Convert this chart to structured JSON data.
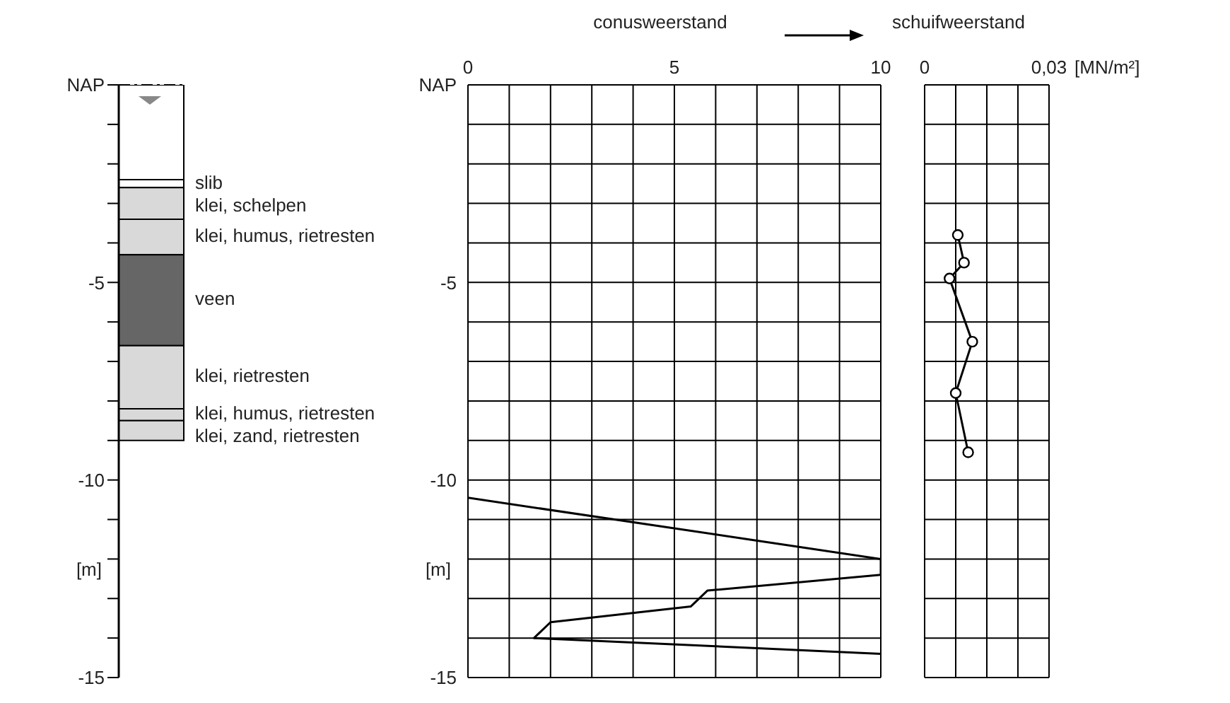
{
  "chart_data": [
    {
      "type": "bar",
      "stacked": true,
      "categories": [
        null
      ],
      "series": [
        {
          "color": "#ffffff",
          "values": [
            -2.4
          ]
        },
        {
          "name": "slib",
          "color": "#ffffff",
          "values": [
            -0.2
          ]
        },
        {
          "name": "klei, schelpen",
          "color": "#d9d9d9",
          "values": [
            -0.8
          ]
        },
        {
          "name": "klei, humus, rietresten",
          "color": "#d9d9d9",
          "values": [
            -0.9
          ]
        },
        {
          "name": "veen",
          "color": "#666666",
          "values": [
            -2.3
          ]
        },
        {
          "name": "klei, rietresten",
          "color": "#d9d9d9",
          "values": [
            -1.6
          ]
        },
        {
          "name": "klei, humus, rietresten",
          "color": "#d9d9d9",
          "values": [
            -0.3
          ]
        },
        {
          "name": "klei, zand, rietresten",
          "color": "#d9d9d9",
          "values": [
            -0.5
          ]
        }
      ],
      "ylim": [
        -15,
        0
      ],
      "yticks": [
        {
          "value": 0,
          "label": "NAP"
        },
        {
          "value": -1,
          "label": null
        },
        {
          "value": -2,
          "label": null
        },
        {
          "value": -3,
          "label": null
        },
        {
          "value": -4,
          "label": null
        },
        -5,
        {
          "value": -6,
          "label": null
        },
        {
          "value": -7,
          "label": null
        },
        {
          "value": -8,
          "label": null
        },
        {
          "value": -9,
          "label": null
        },
        -10,
        {
          "value": -11,
          "label": null
        },
        {
          "value": -12,
          "label": null
        },
        {
          "value": -13,
          "label": null
        },
        {
          "value": -14,
          "label": null
        },
        -15
      ],
      "ylabel": "[m]",
      "tick_labels": "y",
      "ref_lines": [
        {
          "axis": "y",
          "value": 0,
          "line_style": "dashed"
        }
      ]
    },
    {
      "type": "line",
      "series": [
        {
          "color": "#000000",
          "x": [
            0,
            10,
            10,
            5.8,
            5.4,
            2,
            1.6,
            10
          ],
          "values": [
            -10.45,
            -12,
            -12.4,
            -12.8,
            -13.2,
            -13.6,
            -14,
            -14.4
          ]
        }
      ],
      "xlim": [
        0,
        10
      ],
      "xticks": [
        0,
        {
          "value": 1,
          "label": null
        },
        {
          "value": 2,
          "label": null
        },
        {
          "value": 3,
          "label": null
        },
        {
          "value": 4,
          "label": null
        },
        5,
        {
          "value": 6,
          "label": null
        },
        {
          "value": 7,
          "label": null
        },
        {
          "value": 8,
          "label": null
        },
        {
          "value": 9,
          "label": null
        },
        10
      ],
      "ylim": [
        -15,
        0
      ],
      "yticks": [
        {
          "value": 0,
          "label": "NAP"
        },
        {
          "value": -1,
          "label": null
        },
        {
          "value": -2,
          "label": null
        },
        {
          "value": -3,
          "label": null
        },
        {
          "value": -4,
          "label": null
        },
        -5,
        {
          "value": -6,
          "label": null
        },
        {
          "value": -7,
          "label": null
        },
        {
          "value": -8,
          "label": null
        },
        {
          "value": -9,
          "label": null
        },
        -10,
        {
          "value": -11,
          "label": null
        },
        {
          "value": -12,
          "label": null
        },
        {
          "value": -13,
          "label": null
        },
        {
          "value": -14,
          "label": null
        },
        -15
      ],
      "xlabel": "conusweerstand",
      "ylabel": "[m]",
      "grid": true,
      "marker": "none"
    },
    {
      "type": "line",
      "series": [
        {
          "color": "#000000",
          "x": [
            0.008,
            0.0095,
            0.006,
            0.0115,
            0.0075,
            0.0105
          ],
          "values": [
            -3.8,
            -4.5,
            -4.9,
            -6.5,
            -7.8,
            -9.3
          ]
        }
      ],
      "xlim": [
        0,
        0.03
      ],
      "xticks": [
        0,
        {
          "value": 0.0075,
          "label": null
        },
        {
          "value": 0.015,
          "label": null
        },
        {
          "value": 0.0225,
          "label": null
        },
        {
          "value": 0.03,
          "label": "0,03"
        }
      ],
      "ylim": [
        -15,
        0
      ],
      "yticks": [
        {
          "value": 0,
          "label": null
        },
        {
          "value": -1,
          "label": null
        },
        {
          "value": -2,
          "label": null
        },
        {
          "value": -3,
          "label": null
        },
        {
          "value": -4,
          "label": null
        },
        {
          "value": -5,
          "label": null
        },
        {
          "value": -6,
          "label": null
        },
        {
          "value": -7,
          "label": null
        },
        {
          "value": -8,
          "label": null
        },
        {
          "value": -9,
          "label": null
        },
        {
          "value": -10,
          "label": null
        },
        {
          "value": -11,
          "label": null
        },
        {
          "value": -12,
          "label": null
        },
        {
          "value": -13,
          "label": null
        },
        {
          "value": -14,
          "label": null
        },
        {
          "value": -15,
          "label": null
        }
      ],
      "tick_labels": "x",
      "xlabel": "schuifweerstand",
      "annotations": [
        "[MN/m²]"
      ],
      "grid": true,
      "marker": "circle"
    }
  ]
}
